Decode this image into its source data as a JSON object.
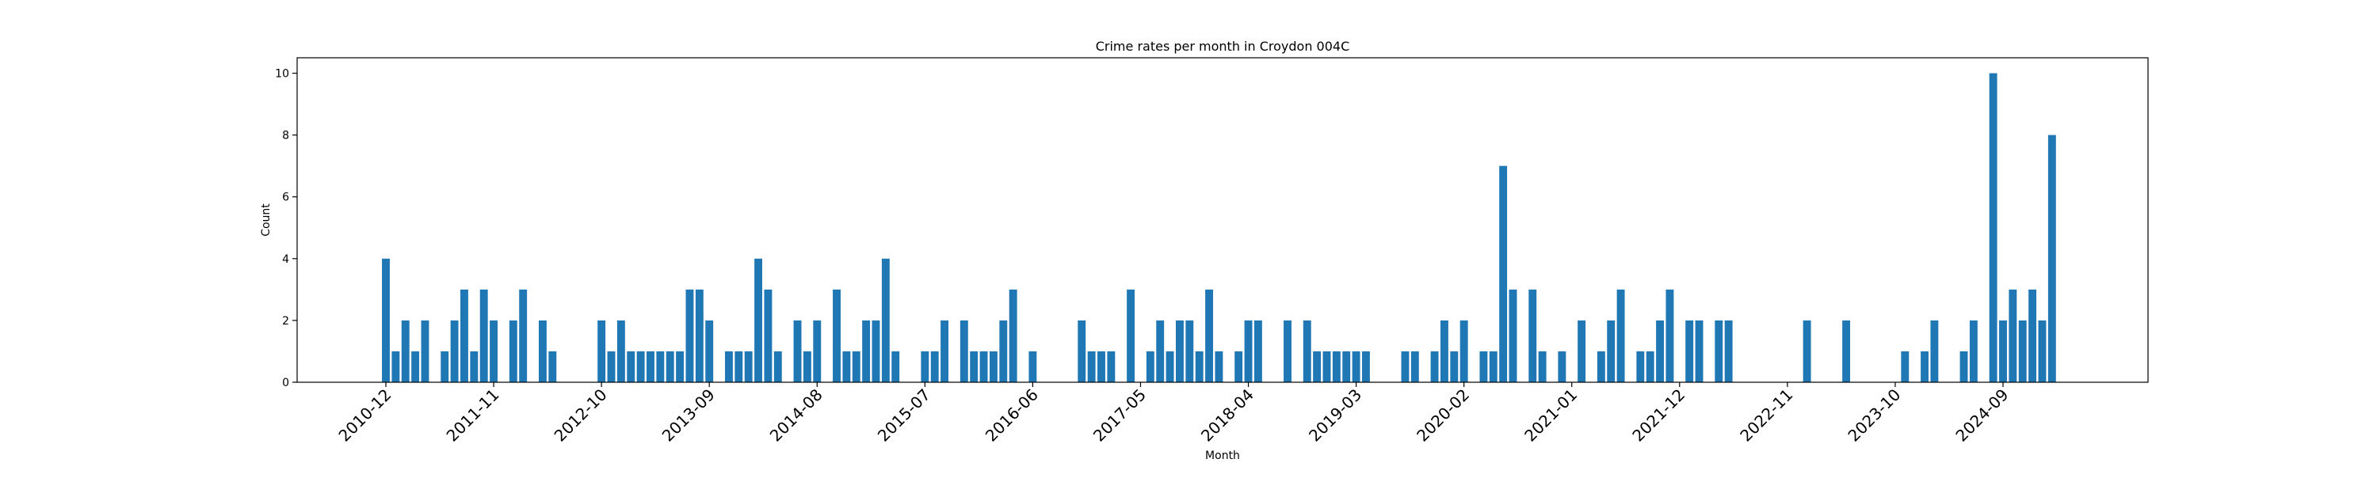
{
  "chart_data": {
    "type": "bar",
    "title": "Crime rates per month in Croydon 004C",
    "xlabel": "Month",
    "ylabel": "Count",
    "ylim": [
      0,
      10.5
    ],
    "yticks": [
      0,
      2,
      4,
      6,
      8,
      10
    ],
    "x_tick_labels": [
      "2010-12",
      "2011-11",
      "2012-10",
      "2013-09",
      "2014-08",
      "2015-07",
      "2016-06",
      "2017-05",
      "2018-04",
      "2019-03",
      "2020-02",
      "2021-01",
      "2021-12",
      "2022-11",
      "2023-10",
      "2024-09"
    ],
    "bar_color": "#1f77b4",
    "grid": false,
    "series": [
      {
        "values": [
          {
            "x": "2010-12",
            "y": 4
          },
          {
            "x": "2011-01",
            "y": 1
          },
          {
            "x": "2011-02",
            "y": 2
          },
          {
            "x": "2011-03",
            "y": 1
          },
          {
            "x": "2011-04",
            "y": 2
          },
          {
            "x": "2011-06",
            "y": 1
          },
          {
            "x": "2011-07",
            "y": 2
          },
          {
            "x": "2011-08",
            "y": 3
          },
          {
            "x": "2011-09",
            "y": 1
          },
          {
            "x": "2011-10",
            "y": 3
          },
          {
            "x": "2011-11",
            "y": 2
          },
          {
            "x": "2012-01",
            "y": 2
          },
          {
            "x": "2012-02",
            "y": 3
          },
          {
            "x": "2012-04",
            "y": 2
          },
          {
            "x": "2012-05",
            "y": 1
          },
          {
            "x": "2012-10",
            "y": 2
          },
          {
            "x": "2012-11",
            "y": 1
          },
          {
            "x": "2012-12",
            "y": 2
          },
          {
            "x": "2013-01",
            "y": 1
          },
          {
            "x": "2013-02",
            "y": 1
          },
          {
            "x": "2013-03",
            "y": 1
          },
          {
            "x": "2013-04",
            "y": 1
          },
          {
            "x": "2013-05",
            "y": 1
          },
          {
            "x": "2013-06",
            "y": 1
          },
          {
            "x": "2013-07",
            "y": 3
          },
          {
            "x": "2013-08",
            "y": 3
          },
          {
            "x": "2013-09",
            "y": 2
          },
          {
            "x": "2013-11",
            "y": 1
          },
          {
            "x": "2013-12",
            "y": 1
          },
          {
            "x": "2014-01",
            "y": 1
          },
          {
            "x": "2014-02",
            "y": 4
          },
          {
            "x": "2014-03",
            "y": 3
          },
          {
            "x": "2014-04",
            "y": 1
          },
          {
            "x": "2014-06",
            "y": 2
          },
          {
            "x": "2014-07",
            "y": 1
          },
          {
            "x": "2014-08",
            "y": 2
          },
          {
            "x": "2014-10",
            "y": 3
          },
          {
            "x": "2014-11",
            "y": 1
          },
          {
            "x": "2014-12",
            "y": 1
          },
          {
            "x": "2015-01",
            "y": 2
          },
          {
            "x": "2015-02",
            "y": 2
          },
          {
            "x": "2015-03",
            "y": 4
          },
          {
            "x": "2015-04",
            "y": 1
          },
          {
            "x": "2015-07",
            "y": 1
          },
          {
            "x": "2015-08",
            "y": 1
          },
          {
            "x": "2015-09",
            "y": 2
          },
          {
            "x": "2015-11",
            "y": 2
          },
          {
            "x": "2015-12",
            "y": 1
          },
          {
            "x": "2016-01",
            "y": 1
          },
          {
            "x": "2016-02",
            "y": 1
          },
          {
            "x": "2016-03",
            "y": 2
          },
          {
            "x": "2016-04",
            "y": 3
          },
          {
            "x": "2016-06",
            "y": 1
          },
          {
            "x": "2016-11",
            "y": 2
          },
          {
            "x": "2016-12",
            "y": 1
          },
          {
            "x": "2017-01",
            "y": 1
          },
          {
            "x": "2017-02",
            "y": 1
          },
          {
            "x": "2017-04",
            "y": 3
          },
          {
            "x": "2017-06",
            "y": 1
          },
          {
            "x": "2017-07",
            "y": 2
          },
          {
            "x": "2017-08",
            "y": 1
          },
          {
            "x": "2017-09",
            "y": 2
          },
          {
            "x": "2017-10",
            "y": 2
          },
          {
            "x": "2017-11",
            "y": 1
          },
          {
            "x": "2017-12",
            "y": 3
          },
          {
            "x": "2018-01",
            "y": 1
          },
          {
            "x": "2018-03",
            "y": 1
          },
          {
            "x": "2018-04",
            "y": 2
          },
          {
            "x": "2018-05",
            "y": 2
          },
          {
            "x": "2018-08",
            "y": 2
          },
          {
            "x": "2018-10",
            "y": 2
          },
          {
            "x": "2018-11",
            "y": 1
          },
          {
            "x": "2018-12",
            "y": 1
          },
          {
            "x": "2019-01",
            "y": 1
          },
          {
            "x": "2019-02",
            "y": 1
          },
          {
            "x": "2019-03",
            "y": 1
          },
          {
            "x": "2019-04",
            "y": 1
          },
          {
            "x": "2019-08",
            "y": 1
          },
          {
            "x": "2019-09",
            "y": 1
          },
          {
            "x": "2019-11",
            "y": 1
          },
          {
            "x": "2019-12",
            "y": 2
          },
          {
            "x": "2020-01",
            "y": 1
          },
          {
            "x": "2020-02",
            "y": 2
          },
          {
            "x": "2020-04",
            "y": 1
          },
          {
            "x": "2020-05",
            "y": 1
          },
          {
            "x": "2020-06",
            "y": 7
          },
          {
            "x": "2020-07",
            "y": 3
          },
          {
            "x": "2020-09",
            "y": 3
          },
          {
            "x": "2020-10",
            "y": 1
          },
          {
            "x": "2020-12",
            "y": 1
          },
          {
            "x": "2021-02",
            "y": 2
          },
          {
            "x": "2021-04",
            "y": 1
          },
          {
            "x": "2021-05",
            "y": 2
          },
          {
            "x": "2021-06",
            "y": 3
          },
          {
            "x": "2021-08",
            "y": 1
          },
          {
            "x": "2021-09",
            "y": 1
          },
          {
            "x": "2021-10",
            "y": 2
          },
          {
            "x": "2021-11",
            "y": 3
          },
          {
            "x": "2022-01",
            "y": 2
          },
          {
            "x": "2022-02",
            "y": 2
          },
          {
            "x": "2022-04",
            "y": 2
          },
          {
            "x": "2022-05",
            "y": 2
          },
          {
            "x": "2023-01",
            "y": 2
          },
          {
            "x": "2023-05",
            "y": 2
          },
          {
            "x": "2023-11",
            "y": 1
          },
          {
            "x": "2024-01",
            "y": 1
          },
          {
            "x": "2024-02",
            "y": 2
          },
          {
            "x": "2024-05",
            "y": 1
          },
          {
            "x": "2024-06",
            "y": 2
          },
          {
            "x": "2024-08",
            "y": 10
          },
          {
            "x": "2024-09",
            "y": 2
          },
          {
            "x": "2024-10",
            "y": 3
          },
          {
            "x": "2024-11",
            "y": 2
          },
          {
            "x": "2024-12",
            "y": 3
          },
          {
            "x": "2025-01",
            "y": 2
          },
          {
            "x": "2025-02",
            "y": 8
          }
        ]
      }
    ]
  }
}
